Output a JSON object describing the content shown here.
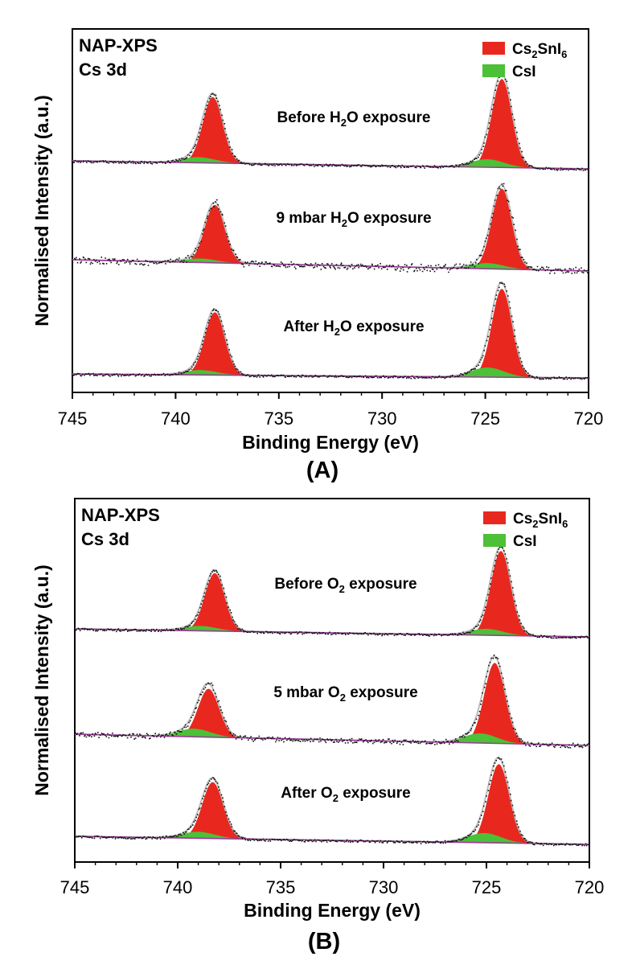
{
  "figure": {
    "panels": [
      {
        "panel_label": "(A)",
        "technique": "NAP-XPS",
        "core_level": "Cs 3d",
        "legend": [
          {
            "name": "Cs₂SnI₆",
            "color": "#e8281e"
          },
          {
            "name": "CsI",
            "color": "#4cc036"
          }
        ]
      },
      {
        "panel_label": "(B)",
        "technique": "NAP-XPS",
        "core_level": "Cs 3d",
        "legend": [
          {
            "name": "Cs₂SnI₆",
            "color": "#e8281e"
          },
          {
            "name": "CsI",
            "color": "#4cc036"
          }
        ]
      }
    ]
  },
  "chart_data": [
    {
      "type": "line",
      "title": "",
      "xlabel": "Binding Energy (eV)",
      "ylabel": "Normalised Intensity (a.u.)",
      "xlim": [
        745,
        720
      ],
      "x_reversed": true,
      "xticks": [
        745,
        740,
        735,
        730,
        725,
        720
      ],
      "yticks": [],
      "grid": false,
      "legend_position": "top-right",
      "colors": {
        "cs2sni6": "#e8281e",
        "csi": "#4cc036",
        "background": "#9b3a9b",
        "data": "#111111",
        "envelope": "#bcbcbc"
      },
      "spectra": [
        {
          "label_parts": [
            "Before H",
            "2",
            "O exposure"
          ],
          "offset": 2.0,
          "bg_start": 0.1,
          "bg_end": 0.0,
          "peaks": [
            {
              "component": "Cs₂SnI₆",
              "center": 738.2,
              "height": 0.82,
              "fwhm": 1.15
            },
            {
              "component": "CsI",
              "center": 738.9,
              "height": 0.07,
              "fwhm": 1.9
            },
            {
              "component": "Cs₂SnI₆",
              "center": 724.2,
              "height": 1.1,
              "fwhm": 1.15
            },
            {
              "component": "CsI",
              "center": 724.9,
              "height": 0.1,
              "fwhm": 1.9
            }
          ],
          "noise": 0.012
        },
        {
          "label_parts": [
            "9 mbar H",
            "2",
            "O exposure"
          ],
          "offset": 1.0,
          "bg_start": 0.12,
          "bg_end": -0.02,
          "peaks": [
            {
              "component": "Cs₂SnI₆",
              "center": 738.1,
              "height": 0.72,
              "fwhm": 1.15
            },
            {
              "component": "CsI",
              "center": 738.8,
              "height": 0.05,
              "fwhm": 1.9
            },
            {
              "component": "Cs₂SnI₆",
              "center": 724.2,
              "height": 1.0,
              "fwhm": 1.15
            },
            {
              "component": "CsI",
              "center": 724.9,
              "height": 0.07,
              "fwhm": 1.9
            }
          ],
          "noise": 0.035
        },
        {
          "label_parts": [
            "After H",
            "2",
            "O exposure"
          ],
          "offset": 0.0,
          "bg_start": 0.05,
          "bg_end": 0.0,
          "peaks": [
            {
              "component": "Cs₂SnI₆",
              "center": 738.1,
              "height": 0.78,
              "fwhm": 1.15
            },
            {
              "component": "CsI",
              "center": 738.8,
              "height": 0.06,
              "fwhm": 1.9
            },
            {
              "component": "Cs₂SnI₆",
              "center": 724.2,
              "height": 1.1,
              "fwhm": 1.15
            },
            {
              "component": "CsI",
              "center": 724.9,
              "height": 0.12,
              "fwhm": 1.9
            }
          ],
          "noise": 0.012
        }
      ]
    },
    {
      "type": "line",
      "title": "",
      "xlabel": "Binding Energy (eV)",
      "ylabel": "Normalised Intensity (a.u.)",
      "xlim": [
        745,
        720
      ],
      "x_reversed": true,
      "xticks": [
        745,
        740,
        735,
        730,
        725,
        720
      ],
      "yticks": [],
      "grid": false,
      "legend_position": "top-right",
      "colors": {
        "cs2sni6": "#e8281e",
        "csi": "#4cc036",
        "background": "#9b3a9b",
        "data": "#111111",
        "envelope": "#bcbcbc"
      },
      "spectra": [
        {
          "label_parts": [
            "Before O",
            "2",
            " exposure"
          ],
          "offset": 2.0,
          "bg_start": 0.08,
          "bg_end": -0.02,
          "peaks": [
            {
              "component": "Cs₂SnI₆",
              "center": 738.2,
              "height": 0.72,
              "fwhm": 1.15
            },
            {
              "component": "CsI",
              "center": 738.9,
              "height": 0.06,
              "fwhm": 1.9
            },
            {
              "component": "Cs₂SnI₆",
              "center": 724.3,
              "height": 1.05,
              "fwhm": 1.15
            },
            {
              "component": "CsI",
              "center": 725.0,
              "height": 0.08,
              "fwhm": 1.9
            }
          ],
          "noise": 0.012
        },
        {
          "label_parts": [
            "5 mbar O",
            "2",
            " exposure"
          ],
          "offset": 1.0,
          "bg_start": 0.12,
          "bg_end": -0.02,
          "peaks": [
            {
              "component": "Cs₂SnI₆",
              "center": 738.5,
              "height": 0.6,
              "fwhm": 1.2
            },
            {
              "component": "CsI",
              "center": 739.2,
              "height": 0.1,
              "fwhm": 1.9
            },
            {
              "component": "Cs₂SnI₆",
              "center": 724.6,
              "height": 1.0,
              "fwhm": 1.2
            },
            {
              "component": "CsI",
              "center": 725.3,
              "height": 0.12,
              "fwhm": 1.9
            }
          ],
          "noise": 0.025
        },
        {
          "label_parts": [
            "After O",
            "2",
            " exposure"
          ],
          "offset": 0.0,
          "bg_start": 0.1,
          "bg_end": 0.0,
          "peaks": [
            {
              "component": "Cs₂SnI₆",
              "center": 738.3,
              "height": 0.7,
              "fwhm": 1.2
            },
            {
              "component": "CsI",
              "center": 739.0,
              "height": 0.08,
              "fwhm": 1.9
            },
            {
              "component": "Cs₂SnI₆",
              "center": 724.4,
              "height": 0.98,
              "fwhm": 1.2
            },
            {
              "component": "CsI",
              "center": 725.1,
              "height": 0.12,
              "fwhm": 1.9
            }
          ],
          "noise": 0.012
        }
      ]
    }
  ]
}
